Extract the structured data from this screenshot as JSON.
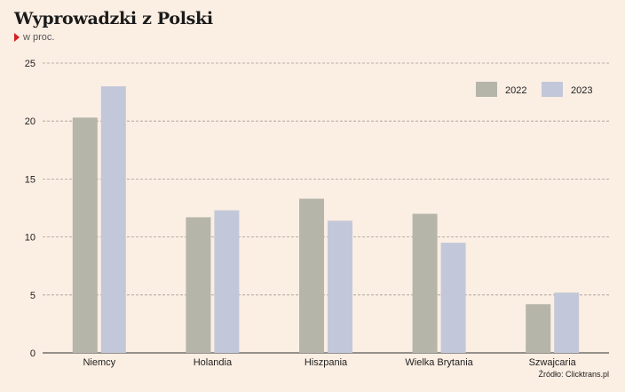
{
  "header": {
    "title": "Wyprowadzki z Polski",
    "subtitle": "w proc."
  },
  "footer": {
    "source": "Źródło: Clicktrans.pl"
  },
  "colors": {
    "background": "#fbeee3",
    "series_2022": "#b5b5aa",
    "series_2023": "#c2c8d9",
    "accent": "#d42020"
  },
  "chart_data": {
    "type": "bar",
    "title": "Wyprowadzki z Polski",
    "subtitle": "w proc.",
    "categories": [
      "Niemcy",
      "Holandia",
      "Hiszpania",
      "Wielka Brytania",
      "Szwajcaria"
    ],
    "series": [
      {
        "name": "2022",
        "values": [
          20.3,
          11.7,
          13.3,
          12.0,
          4.2
        ]
      },
      {
        "name": "2023",
        "values": [
          23.0,
          12.3,
          11.4,
          9.5,
          5.2
        ]
      }
    ],
    "ylim": [
      0,
      25
    ],
    "yticks": [
      0,
      5,
      10,
      15,
      20,
      25
    ],
    "grid": true,
    "legend": "top-right"
  }
}
